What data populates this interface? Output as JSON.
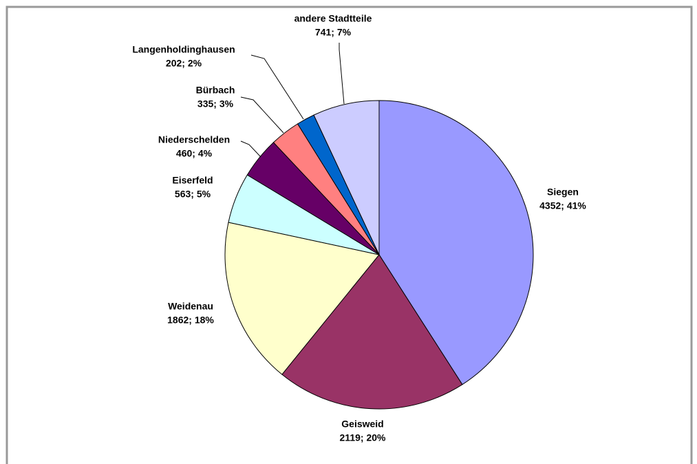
{
  "chart_data": {
    "type": "pie",
    "categories": [
      "Siegen",
      "Geisweid",
      "Weidenau",
      "Eiserfeld",
      "Niederschelden",
      "Bürbach",
      "Langenholdinghausen",
      "andere Stadtteile"
    ],
    "values": [
      4352,
      2119,
      1862,
      563,
      460,
      335,
      202,
      741
    ],
    "value_labels": [
      "4352; 41%",
      "2119; 20%",
      "1862; 18%",
      "563; 5%",
      "460; 4%",
      "335; 3%",
      "202; 2%",
      "741; 7%"
    ],
    "colors": [
      "#9999ff",
      "#993366",
      "#ffffcc",
      "#ccffff",
      "#660066",
      "#ff8080",
      "#0066cc",
      "#ccccff"
    ]
  }
}
